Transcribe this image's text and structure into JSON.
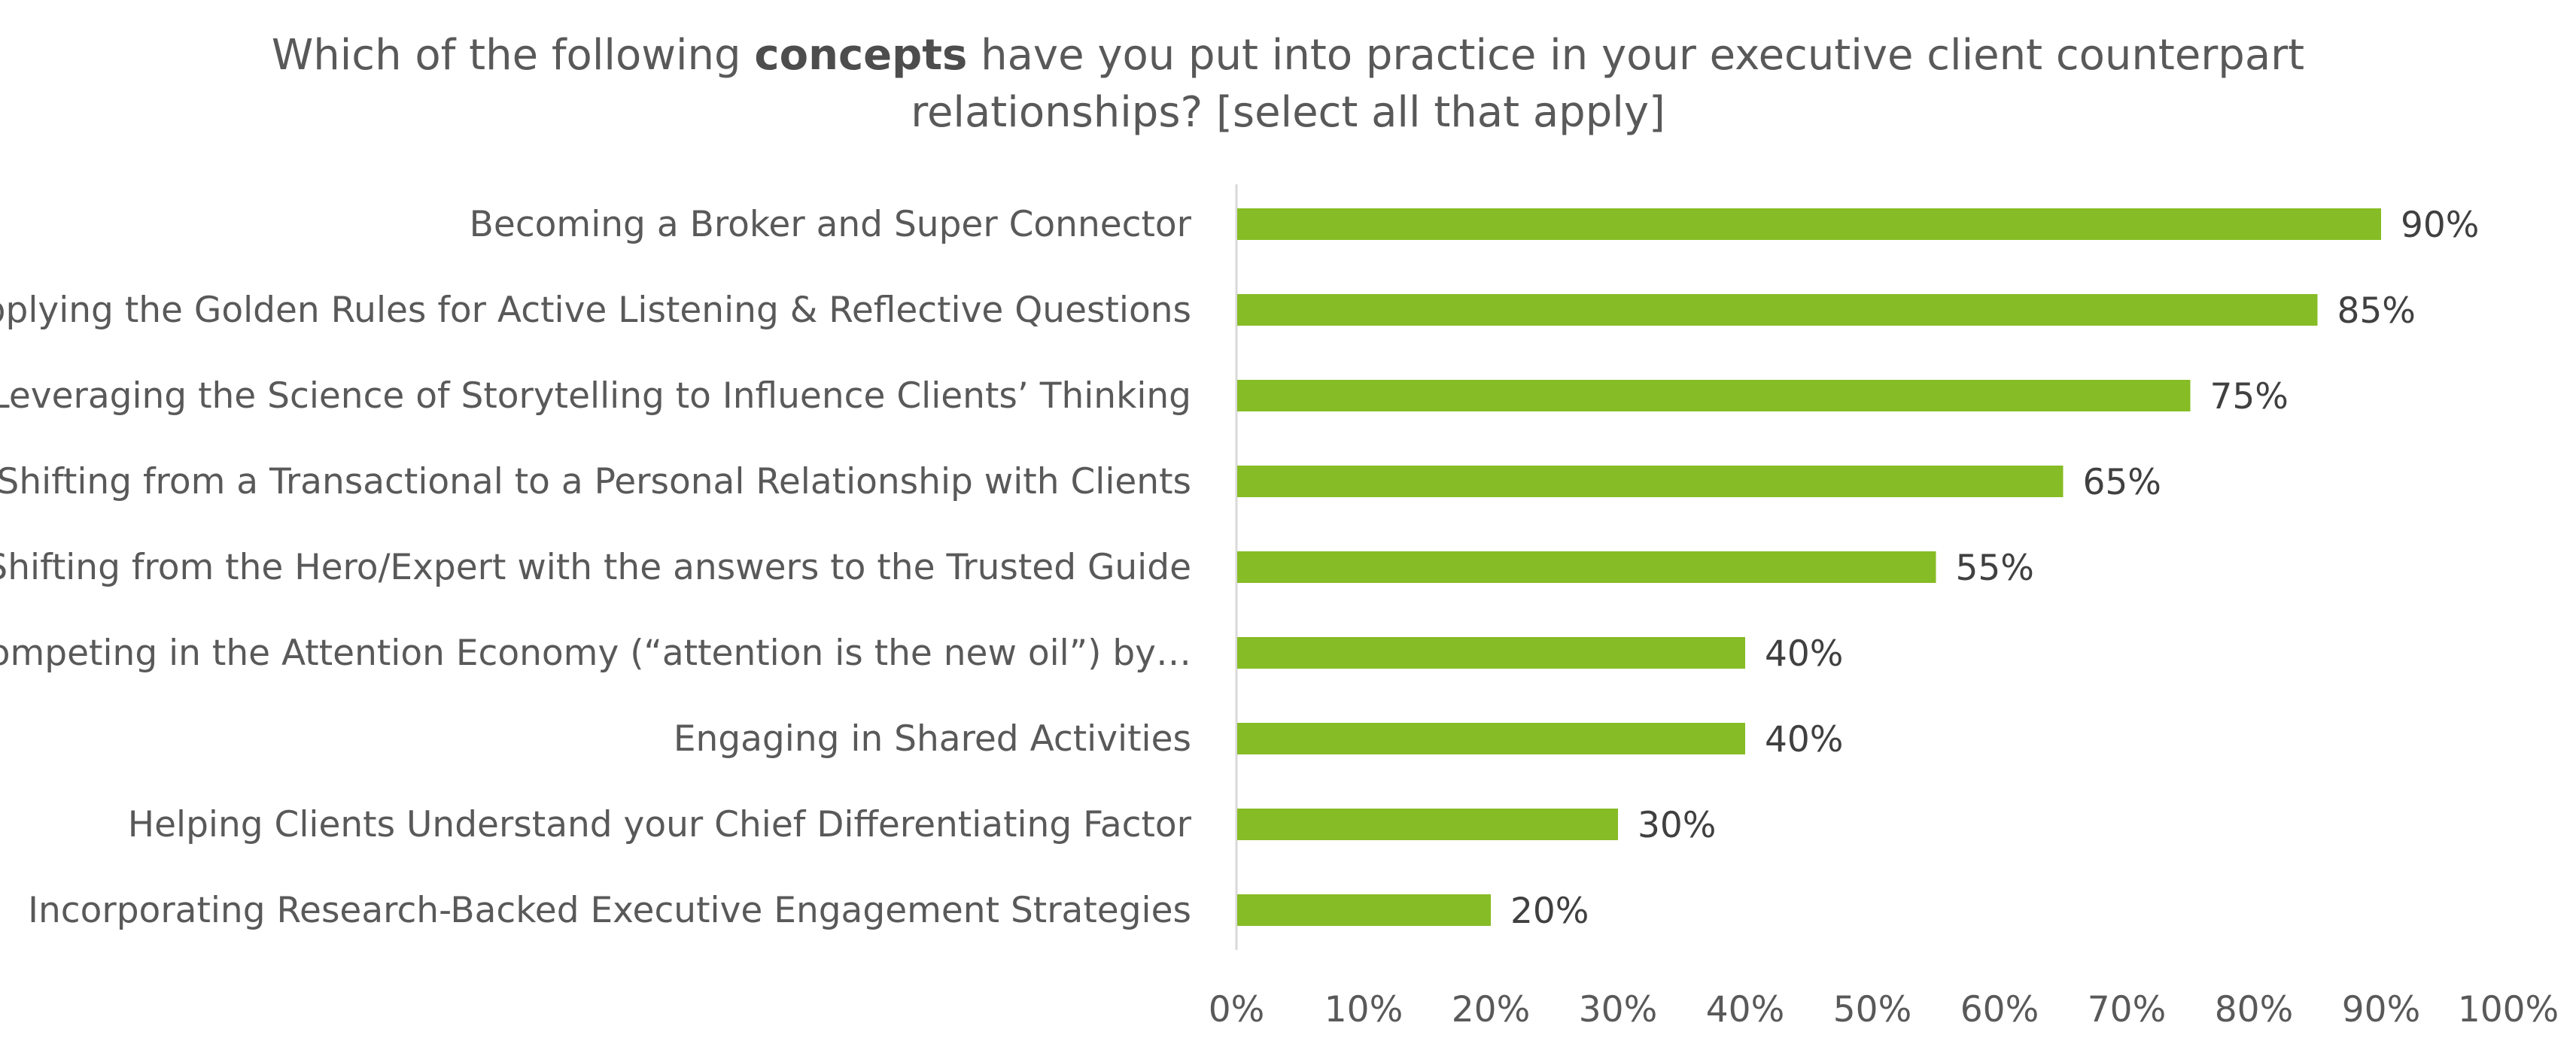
{
  "chart_data": {
    "type": "bar",
    "orientation": "horizontal",
    "title": {
      "line1_before": "Which of the following ",
      "line1_bold": "concepts",
      "line1_after": " have you put into practice in your executive client counterpart",
      "line2": "relationships? [select all that apply]"
    },
    "categories": [
      "Becoming a Broker and Super Connector",
      "Applying the Golden Rules for Active Listening & Reflective Questions",
      "Leveraging the Science of Storytelling to Influence Clients’ Thinking",
      "Shifting from a Transactional to a Personal Relationship with Clients",
      "Shifting from the Hero/Expert with the answers to the Trusted Guide",
      "Competing in the Attention Economy (“attention is the new oil”) by…",
      "Engaging in Shared Activities",
      "Helping Clients Understand your Chief Differentiating Factor",
      "Incorporating Research-Backed Executive Engagement Strategies"
    ],
    "values": [
      90,
      85,
      75,
      65,
      55,
      40,
      40,
      30,
      20
    ],
    "value_labels": [
      "90%",
      "85%",
      "75%",
      "65%",
      "55%",
      "40%",
      "40%",
      "30%",
      "20%"
    ],
    "xlim": [
      0,
      100
    ],
    "x_ticks": [
      0,
      10,
      20,
      30,
      40,
      50,
      60,
      70,
      80,
      90,
      100
    ],
    "x_tick_labels": [
      "0%",
      "10%",
      "20%",
      "30%",
      "40%",
      "50%",
      "60%",
      "70%",
      "80%",
      "90%",
      "100%"
    ],
    "grid": false,
    "legend": "none",
    "bar_color": "#86bc25",
    "axis_color": "#d9d9d9"
  }
}
